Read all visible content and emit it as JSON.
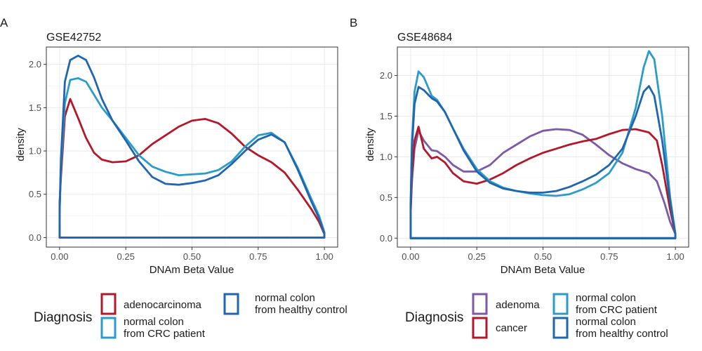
{
  "chart_data": [
    {
      "tag": "A",
      "type": "line",
      "title": "GSE42752",
      "xlabel": "DNAm Beta Value",
      "ylabel": "density",
      "xlim": [
        0,
        1
      ],
      "ylim": [
        0,
        2.2
      ],
      "xticks": [
        "0.00",
        "0.25",
        "0.50",
        "0.75",
        "1.00"
      ],
      "yticks": [
        "0.0",
        "0.5",
        "1.0",
        "1.5",
        "2.0"
      ],
      "grid": true,
      "legend": {
        "title": "Diagnosis",
        "position": "bottom",
        "entries": [
          {
            "lines": [
              "adenocarcinoma"
            ],
            "color": "#b2182b"
          },
          {
            "lines": [
              "normal colon",
              "from CRC patient"
            ],
            "color": "#2b9bc9"
          },
          {
            "lines": [
              "normal colon",
              "from healthy control"
            ],
            "color": "#2166ac"
          }
        ]
      },
      "series": [
        {
          "name": "adenocarcinoma",
          "color": "#b2182b",
          "x": [
            0,
            0.005,
            0.02,
            0.04,
            0.07,
            0.1,
            0.13,
            0.16,
            0.2,
            0.25,
            0.3,
            0.35,
            0.4,
            0.45,
            0.5,
            0.55,
            0.6,
            0.65,
            0.7,
            0.75,
            0.8,
            0.85,
            0.9,
            0.95,
            0.98,
            1.0
          ],
          "y": [
            0.4,
            0.7,
            1.4,
            1.6,
            1.38,
            1.15,
            0.98,
            0.9,
            0.87,
            0.88,
            0.95,
            1.08,
            1.18,
            1.28,
            1.35,
            1.37,
            1.32,
            1.2,
            1.05,
            0.95,
            0.87,
            0.75,
            0.55,
            0.33,
            0.18,
            0.04
          ]
        },
        {
          "name": "normal colon from CRC patient",
          "color": "#2b9bc9",
          "x": [
            0,
            0.005,
            0.02,
            0.04,
            0.07,
            0.1,
            0.13,
            0.16,
            0.2,
            0.25,
            0.3,
            0.35,
            0.4,
            0.45,
            0.5,
            0.55,
            0.6,
            0.65,
            0.7,
            0.75,
            0.8,
            0.85,
            0.9,
            0.95,
            0.98,
            1.0
          ],
          "y": [
            0.3,
            0.8,
            1.55,
            1.82,
            1.84,
            1.8,
            1.65,
            1.5,
            1.35,
            1.15,
            0.95,
            0.82,
            0.76,
            0.72,
            0.73,
            0.74,
            0.78,
            0.88,
            1.05,
            1.18,
            1.21,
            1.1,
            0.8,
            0.45,
            0.25,
            0.06
          ]
        },
        {
          "name": "normal colon from healthy control",
          "color": "#2166ac",
          "x": [
            0,
            0.005,
            0.02,
            0.04,
            0.07,
            0.1,
            0.13,
            0.16,
            0.2,
            0.25,
            0.3,
            0.35,
            0.4,
            0.45,
            0.5,
            0.55,
            0.6,
            0.65,
            0.7,
            0.75,
            0.8,
            0.85,
            0.9,
            0.95,
            0.98,
            1.0
          ],
          "y": [
            0.3,
            0.9,
            1.8,
            2.05,
            2.1,
            2.05,
            1.85,
            1.6,
            1.35,
            1.12,
            0.88,
            0.7,
            0.62,
            0.61,
            0.63,
            0.66,
            0.72,
            0.85,
            1.0,
            1.13,
            1.19,
            1.1,
            0.78,
            0.42,
            0.22,
            0.05
          ]
        }
      ]
    },
    {
      "tag": "B",
      "type": "line",
      "title": "GSE48684",
      "xlabel": "DNAm Beta Value",
      "ylabel": "density",
      "xlim": [
        0,
        1
      ],
      "ylim": [
        0,
        2.35
      ],
      "xticks": [
        "0.00",
        "0.25",
        "0.50",
        "0.75",
        "1.00"
      ],
      "yticks": [
        "0.0",
        "0.5",
        "1.0",
        "1.5",
        "2.0"
      ],
      "grid": true,
      "legend": {
        "title": "Diagnosis",
        "position": "bottom",
        "entries": [
          {
            "lines": [
              "adenoma"
            ],
            "color": "#7b5aa6"
          },
          {
            "lines": [
              "cancer"
            ],
            "color": "#b2182b"
          },
          {
            "lines": [
              "normal colon",
              "from CRC patient"
            ],
            "color": "#2b9bc9"
          },
          {
            "lines": [
              "normal colon",
              "from healthy control"
            ],
            "color": "#2166ac"
          }
        ]
      },
      "series": [
        {
          "name": "adenoma",
          "color": "#7b5aa6",
          "x": [
            0,
            0.005,
            0.015,
            0.03,
            0.05,
            0.08,
            0.1,
            0.13,
            0.16,
            0.2,
            0.25,
            0.3,
            0.35,
            0.4,
            0.45,
            0.5,
            0.55,
            0.6,
            0.65,
            0.7,
            0.75,
            0.8,
            0.85,
            0.9,
            0.93,
            0.96,
            0.98,
            1.0
          ],
          "y": [
            0.3,
            0.7,
            1.1,
            1.32,
            1.2,
            1.08,
            1.07,
            1.0,
            0.9,
            0.82,
            0.82,
            0.9,
            1.05,
            1.15,
            1.25,
            1.32,
            1.34,
            1.33,
            1.27,
            1.15,
            1.02,
            0.92,
            0.85,
            0.8,
            0.7,
            0.42,
            0.2,
            0.05
          ]
        },
        {
          "name": "cancer",
          "color": "#b2182b",
          "x": [
            0,
            0.005,
            0.015,
            0.03,
            0.05,
            0.08,
            0.1,
            0.13,
            0.16,
            0.2,
            0.25,
            0.3,
            0.35,
            0.4,
            0.45,
            0.5,
            0.55,
            0.6,
            0.65,
            0.7,
            0.75,
            0.8,
            0.85,
            0.9,
            0.93,
            0.95,
            0.98,
            1.0
          ],
          "y": [
            0.3,
            0.8,
            1.2,
            1.37,
            1.1,
            0.98,
            1.0,
            0.93,
            0.8,
            0.7,
            0.67,
            0.72,
            0.8,
            0.9,
            0.98,
            1.05,
            1.1,
            1.15,
            1.19,
            1.22,
            1.28,
            1.33,
            1.34,
            1.3,
            1.2,
            0.9,
            0.35,
            0.05
          ]
        },
        {
          "name": "normal colon from CRC patient",
          "color": "#2b9bc9",
          "x": [
            0,
            0.005,
            0.015,
            0.03,
            0.05,
            0.08,
            0.1,
            0.13,
            0.16,
            0.2,
            0.25,
            0.3,
            0.35,
            0.4,
            0.45,
            0.5,
            0.55,
            0.6,
            0.65,
            0.7,
            0.75,
            0.8,
            0.85,
            0.88,
            0.9,
            0.92,
            0.95,
            0.98,
            1.0
          ],
          "y": [
            0.4,
            1.2,
            1.8,
            2.05,
            1.98,
            1.75,
            1.7,
            1.55,
            1.35,
            1.1,
            0.85,
            0.7,
            0.62,
            0.58,
            0.55,
            0.53,
            0.52,
            0.54,
            0.6,
            0.68,
            0.8,
            1.05,
            1.6,
            2.1,
            2.3,
            2.2,
            1.5,
            0.5,
            0.05
          ]
        },
        {
          "name": "normal colon from healthy control",
          "color": "#2166ac",
          "x": [
            0,
            0.005,
            0.015,
            0.03,
            0.05,
            0.08,
            0.1,
            0.13,
            0.16,
            0.2,
            0.25,
            0.3,
            0.35,
            0.4,
            0.45,
            0.5,
            0.55,
            0.6,
            0.65,
            0.7,
            0.75,
            0.8,
            0.85,
            0.88,
            0.9,
            0.92,
            0.95,
            0.98,
            1.0
          ],
          "y": [
            0.4,
            1.1,
            1.65,
            1.86,
            1.82,
            1.72,
            1.68,
            1.55,
            1.35,
            1.08,
            0.82,
            0.68,
            0.61,
            0.58,
            0.56,
            0.56,
            0.58,
            0.63,
            0.7,
            0.78,
            0.9,
            1.1,
            1.5,
            1.8,
            1.87,
            1.75,
            1.2,
            0.45,
            0.05
          ]
        }
      ]
    }
  ]
}
